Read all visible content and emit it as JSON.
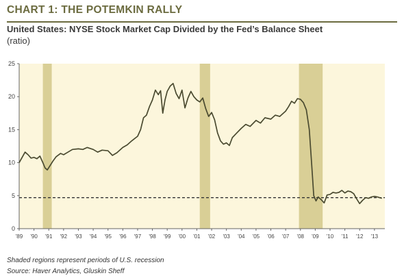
{
  "header": {
    "chart_label": "CHART 1: THE  POTEMKIN RALLY",
    "subtitle": "United States: NYSE Stock Market Cap Divided by the Fed’s Balance Sheet",
    "unit": "(ratio)"
  },
  "footer": {
    "note": "Shaded regions represent periods of U.S. recession",
    "source": "Source: Haver Analytics, Gluskin Sheff"
  },
  "colors": {
    "plot_bg": "#fcf6dc",
    "recession": "#d9cf96",
    "line": "#4a4a30",
    "reference": "#333333",
    "title": "#6b6b3f"
  },
  "chart_data": {
    "type": "line",
    "ylim": [
      0,
      25
    ],
    "y_ticks": [
      "0",
      "5",
      "10",
      "15",
      "20",
      "25"
    ],
    "x_ticks": [
      "'89",
      "'90",
      "'91",
      "'92",
      "'93",
      "'94",
      "'95",
      "'96",
      "'97",
      "'98",
      "'99",
      "'00",
      "'01",
      "'02",
      "'03",
      "'04",
      "'05",
      "'06",
      "'07",
      "'08",
      "'09",
      "'10",
      "'11",
      "'12",
      "'13"
    ],
    "xlim": [
      1989.0,
      2013.7
    ],
    "recessions": [
      [
        1990.6,
        1991.2
      ],
      [
        2001.2,
        2001.9
      ],
      [
        2007.9,
        2009.5
      ]
    ],
    "reference_line": 4.7,
    "series": [
      {
        "x": [
          1989.0,
          1989.2,
          1989.4,
          1989.6,
          1989.8,
          1990.0,
          1990.2,
          1990.4,
          1990.6,
          1990.75,
          1990.9,
          1991.1,
          1991.3,
          1991.5,
          1991.8,
          1992.0,
          1992.3,
          1992.6,
          1993.0,
          1993.3,
          1993.6,
          1994.0,
          1994.3,
          1994.6,
          1995.0,
          1995.3,
          1995.6,
          1996.0,
          1996.3,
          1996.6,
          1997.0,
          1997.2,
          1997.4,
          1997.6,
          1997.8,
          1998.0,
          1998.2,
          1998.4,
          1998.55,
          1998.7,
          1998.85,
          1999.0,
          1999.2,
          1999.4,
          1999.6,
          1999.8,
          2000.0,
          2000.2,
          2000.4,
          2000.6,
          2000.8,
          2001.0,
          2001.2,
          2001.4,
          2001.6,
          2001.8,
          2002.0,
          2002.2,
          2002.4,
          2002.6,
          2002.8,
          2003.0,
          2003.2,
          2003.4,
          2003.7,
          2004.0,
          2004.3,
          2004.6,
          2005.0,
          2005.3,
          2005.6,
          2006.0,
          2006.3,
          2006.6,
          2007.0,
          2007.2,
          2007.4,
          2007.6,
          2007.8,
          2008.0,
          2008.2,
          2008.4,
          2008.6,
          2008.75,
          2008.9,
          2009.05,
          2009.2,
          2009.4,
          2009.6,
          2009.8,
          2010.0,
          2010.2,
          2010.4,
          2010.6,
          2010.8,
          2011.0,
          2011.2,
          2011.4,
          2011.6,
          2011.8,
          2012.0,
          2012.2,
          2012.4,
          2012.6,
          2012.8,
          2013.0,
          2013.2,
          2013.5
        ],
        "y": [
          10.0,
          10.8,
          11.6,
          11.2,
          10.7,
          10.8,
          10.6,
          11.0,
          10.0,
          9.2,
          8.9,
          9.6,
          10.3,
          10.9,
          11.4,
          11.2,
          11.6,
          12.0,
          12.1,
          12.0,
          12.3,
          12.0,
          11.6,
          11.9,
          11.8,
          11.1,
          11.5,
          12.3,
          12.7,
          13.3,
          14.0,
          15.0,
          16.8,
          17.2,
          18.5,
          19.5,
          21.0,
          20.3,
          20.9,
          17.5,
          19.5,
          20.8,
          21.6,
          22.0,
          20.5,
          19.7,
          21.0,
          18.3,
          19.8,
          20.8,
          20.0,
          19.5,
          19.2,
          19.8,
          18.2,
          17.0,
          17.6,
          16.5,
          14.5,
          13.3,
          12.8,
          13.0,
          12.6,
          13.8,
          14.5,
          15.2,
          15.8,
          15.5,
          16.4,
          16.0,
          16.8,
          16.6,
          17.2,
          17.0,
          17.8,
          18.5,
          19.3,
          19.0,
          19.7,
          19.6,
          19.1,
          18.0,
          15.0,
          10.0,
          5.0,
          4.2,
          4.8,
          4.4,
          3.9,
          5.1,
          5.2,
          5.5,
          5.4,
          5.5,
          5.8,
          5.4,
          5.7,
          5.6,
          5.3,
          4.5,
          3.8,
          4.3,
          4.7,
          4.6,
          4.8,
          4.9,
          4.8,
          4.6
        ]
      }
    ]
  }
}
